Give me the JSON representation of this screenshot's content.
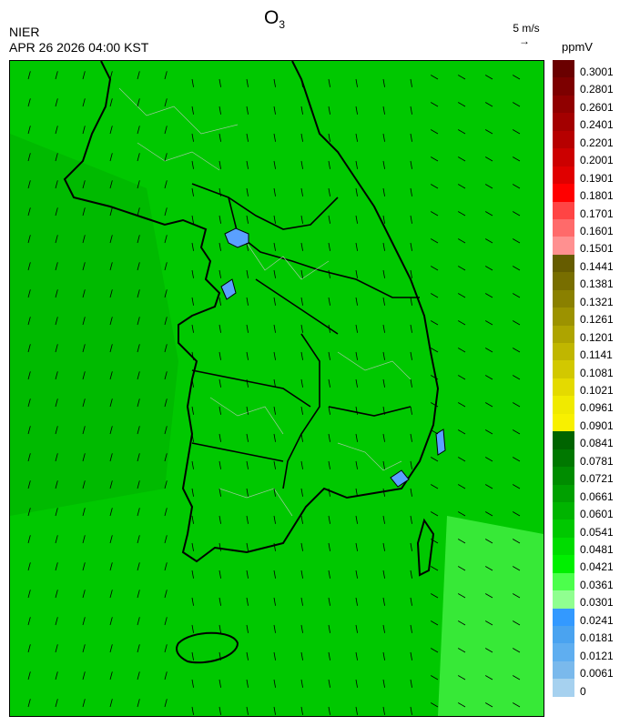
{
  "header": {
    "agency": "NIER",
    "datetime": "APR 26 2026 04:00 KST",
    "species": "O",
    "species_sub": "3"
  },
  "wind_reference": {
    "label": "5 m/s",
    "arrow": "→"
  },
  "colorbar": {
    "unit": "ppmV",
    "labels": [
      "0.3001",
      "0.2801",
      "0.2601",
      "0.2401",
      "0.2201",
      "0.2001",
      "0.1901",
      "0.1801",
      "0.1701",
      "0.1601",
      "0.1501",
      "0.1441",
      "0.1381",
      "0.1321",
      "0.1261",
      "0.1201",
      "0.1141",
      "0.1081",
      "0.1021",
      "0.0961",
      "0.0901",
      "0.0841",
      "0.0781",
      "0.0721",
      "0.0661",
      "0.0601",
      "0.0541",
      "0.0481",
      "0.0421",
      "0.0361",
      "0.0301",
      "0.0241",
      "0.0181",
      "0.0121",
      "0.0061",
      "0"
    ],
    "colors": [
      "#6a0000",
      "#7d0000",
      "#900000",
      "#a30000",
      "#b60000",
      "#cc0000",
      "#e00000",
      "#ff0000",
      "#ff4444",
      "#ff6a6a",
      "#ff9090",
      "#665c00",
      "#786e00",
      "#8a8000",
      "#9c9200",
      "#aea400",
      "#c0b600",
      "#d2c800",
      "#e4da00",
      "#f0ea00",
      "#f8f000",
      "#006400",
      "#007800",
      "#008c00",
      "#00a000",
      "#00b400",
      "#00c800",
      "#00dc00",
      "#00f000",
      "#4cff4c",
      "#90ff90",
      "#3399ff",
      "#4aa3f0",
      "#5faef0",
      "#7ab9ec",
      "#a6d1ef"
    ]
  },
  "map": {
    "background_color": "#00c800",
    "ocean_region": "west-sea",
    "coast_color": "#000000",
    "boundary_color": "#bdbdbd"
  }
}
